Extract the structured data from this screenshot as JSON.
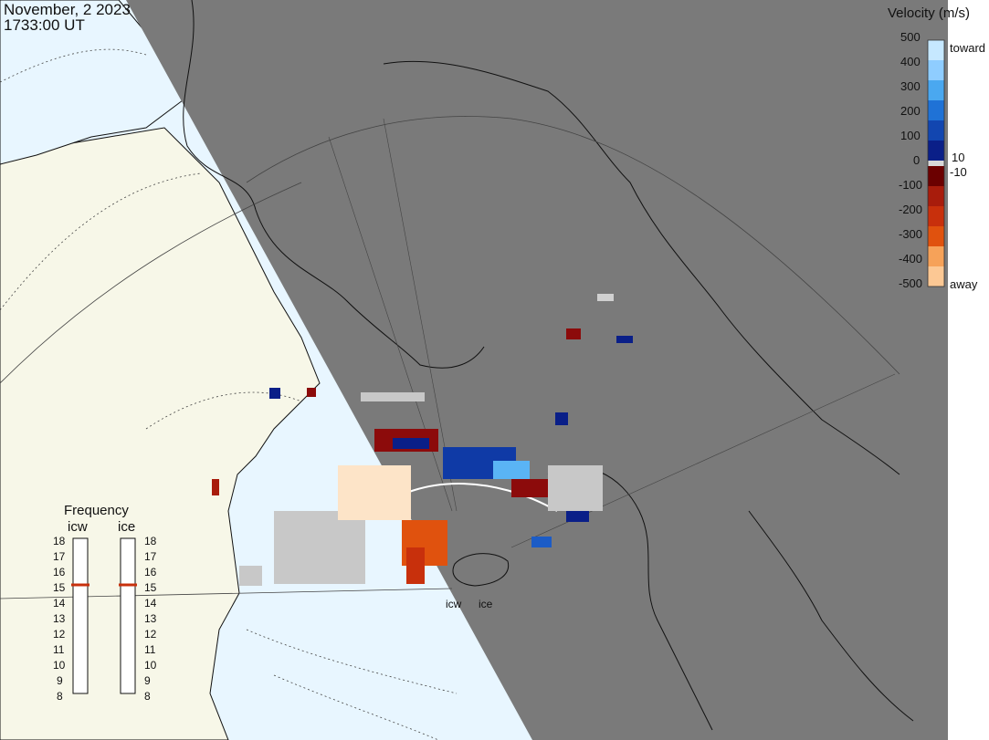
{
  "header": {
    "date": "November, 2 2023",
    "time": "1733:00 UT"
  },
  "colorbar": {
    "title": "Velocity (m/s)",
    "ticks": [
      "500",
      "400",
      "300",
      "200",
      "100",
      "0",
      "-100",
      "-200",
      "-300",
      "-400",
      "-500"
    ],
    "side_labels": [
      "toward",
      "10",
      "-10",
      "away"
    ],
    "colors_toward": [
      "#dff2ff",
      "#9fd9ff",
      "#5ab4f5",
      "#2b86e0",
      "#1c5cc6",
      "#0f3aa6",
      "#0a1f88",
      "#061473"
    ],
    "colors_away": [
      "#6b0000",
      "#8c0b0b",
      "#a81c0c",
      "#c8300c",
      "#e0520e",
      "#ef7a1e",
      "#f6a259",
      "#fcc894",
      "#fde4c8"
    ]
  },
  "frequency": {
    "title": "Frequency",
    "radars": [
      "icw",
      "ice"
    ],
    "scale": [
      "18",
      "17",
      "16",
      "15",
      "14",
      "13",
      "12",
      "11",
      "10",
      "9",
      "8"
    ],
    "icw_mhz": 15,
    "ice_mhz": 15
  },
  "sites": [
    "icw",
    "ice"
  ],
  "colors": {
    "ocean": "#e8f6ff",
    "land": "#f7f7e8",
    "night": "#7a7a7a",
    "coast": "#111111",
    "grid": "#555555"
  }
}
